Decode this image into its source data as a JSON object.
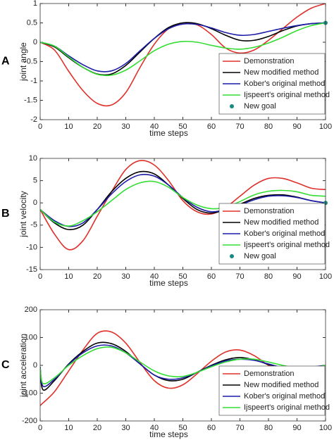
{
  "chart_data": [
    {
      "type": "line",
      "panel_label": "A",
      "xlabel": "time steps",
      "ylabel": "joint angle",
      "x": [
        0,
        5,
        10,
        15,
        20,
        25,
        30,
        35,
        40,
        45,
        50,
        55,
        60,
        65,
        70,
        75,
        80,
        85,
        90,
        95,
        100
      ],
      "xlim": [
        0,
        100
      ],
      "xticks": [
        0,
        10,
        20,
        30,
        40,
        50,
        60,
        70,
        80,
        90,
        100
      ],
      "ylim": [
        -2,
        1
      ],
      "yticks": [
        -2,
        -1.5,
        -1,
        -0.5,
        0,
        0.5,
        1
      ],
      "legend": "lower right",
      "series": [
        {
          "name": "Demonstration",
          "color": "#e0302a",
          "values": [
            0,
            -0.2,
            -0.75,
            -1.25,
            -1.58,
            -1.62,
            -1.3,
            -0.65,
            -0.05,
            0.35,
            0.5,
            0.45,
            0.2,
            -0.15,
            -0.28,
            -0.2,
            0.05,
            0.35,
            0.65,
            0.88,
            1.0
          ]
        },
        {
          "name": "New modified method",
          "color": "#000000",
          "values": [
            0,
            -0.12,
            -0.4,
            -0.65,
            -0.82,
            -0.82,
            -0.6,
            -0.25,
            0.1,
            0.38,
            0.5,
            0.48,
            0.35,
            0.18,
            0.05,
            0.05,
            0.15,
            0.3,
            0.42,
            0.48,
            0.5
          ]
        },
        {
          "name": "Kober's original method",
          "color": "#1c1ca8",
          "values": [
            0,
            -0.1,
            -0.35,
            -0.58,
            -0.74,
            -0.74,
            -0.55,
            -0.22,
            0.1,
            0.35,
            0.47,
            0.46,
            0.37,
            0.25,
            0.18,
            0.2,
            0.28,
            0.36,
            0.43,
            0.48,
            0.5
          ]
        },
        {
          "name": "Ijspeert's original method",
          "color": "#33dd33",
          "values": [
            0,
            -0.1,
            -0.38,
            -0.65,
            -0.83,
            -0.85,
            -0.72,
            -0.48,
            -0.22,
            -0.05,
            0.02,
            0,
            -0.08,
            -0.15,
            -0.18,
            -0.13,
            -0.02,
            0.13,
            0.3,
            0.43,
            0.5
          ]
        },
        {
          "name": "New goal",
          "color": "#1a8a80",
          "marker": true,
          "x": [
            100
          ],
          "values": [
            0.5
          ]
        }
      ]
    },
    {
      "type": "line",
      "panel_label": "B",
      "xlabel": "time steps",
      "ylabel": "joint velocity",
      "x": [
        0,
        5,
        10,
        15,
        20,
        25,
        30,
        35,
        40,
        45,
        50,
        55,
        60,
        65,
        70,
        75,
        80,
        85,
        90,
        95,
        100
      ],
      "xlim": [
        0,
        100
      ],
      "xticks": [
        0,
        10,
        20,
        30,
        40,
        50,
        60,
        70,
        80,
        90,
        100
      ],
      "ylim": [
        -15,
        10
      ],
      "yticks": [
        -15,
        -10,
        -5,
        0,
        5,
        10
      ],
      "legend": "lower right",
      "series": [
        {
          "name": "Demonstration",
          "color": "#e0302a",
          "values": [
            -1.5,
            -7,
            -10.5,
            -8.5,
            -3,
            2.5,
            7.5,
            9.5,
            8.5,
            5,
            0.5,
            -2,
            -2.5,
            -1,
            1.5,
            4,
            5.5,
            5.5,
            4.5,
            3.3,
            3
          ]
        },
        {
          "name": "New modified method",
          "color": "#000000",
          "values": [
            -1.5,
            -4.5,
            -6,
            -5,
            -1.5,
            2.5,
            5.5,
            7,
            6.5,
            4,
            1,
            -1.5,
            -2.3,
            -1.5,
            -0.3,
            1,
            1.7,
            1.8,
            1.3,
            0.5,
            0
          ]
        },
        {
          "name": "Kober's original method",
          "color": "#1c1ca8",
          "values": [
            -1.5,
            -4,
            -5.3,
            -4.5,
            -1.5,
            2,
            4.8,
            6.3,
            6,
            4,
            1.2,
            -1,
            -2,
            -1.5,
            -0.5,
            0.7,
            1.5,
            1.6,
            1.2,
            0.5,
            0
          ]
        },
        {
          "name": "Ijspeert's original method",
          "color": "#33dd33",
          "values": [
            -1.5,
            -4.3,
            -5.2,
            -4,
            -2,
            0.5,
            3,
            4.5,
            4.8,
            3.5,
            1.2,
            -0.5,
            -1.3,
            -1,
            0.3,
            1.8,
            2.6,
            2.8,
            2.5,
            1.7,
            1.5
          ]
        },
        {
          "name": "New goal",
          "color": "#1a8a80",
          "marker": true,
          "x": [
            100
          ],
          "values": [
            0
          ]
        }
      ]
    },
    {
      "type": "line",
      "panel_label": "C",
      "xlabel": "time steps",
      "ylabel": "joint acceleration",
      "x": [
        0,
        1,
        5,
        10,
        15,
        20,
        25,
        30,
        35,
        40,
        45,
        50,
        55,
        60,
        65,
        70,
        75,
        80,
        85,
        90,
        95,
        100
      ],
      "xlim": [
        0,
        100
      ],
      "xticks": [
        0,
        10,
        20,
        30,
        40,
        50,
        60,
        70,
        80,
        90,
        100
      ],
      "ylim": [
        -200,
        200
      ],
      "yticks": [
        -200,
        -100,
        0,
        100,
        200
      ],
      "legend": "lower right",
      "series": [
        {
          "name": "Demonstration",
          "color": "#e0302a",
          "values": [
            -145,
            -135,
            -95,
            -20,
            55,
            115,
            120,
            80,
            10,
            -55,
            -82,
            -70,
            -30,
            15,
            48,
            55,
            35,
            0,
            -25,
            -30,
            -15,
            0
          ]
        },
        {
          "name": "New modified method",
          "color": "#000000",
          "values": [
            -10,
            -88,
            -55,
            5,
            50,
            80,
            78,
            50,
            5,
            -35,
            -55,
            -50,
            -25,
            0,
            20,
            28,
            20,
            3,
            -10,
            -15,
            -8,
            0
          ]
        },
        {
          "name": "Kober's original method",
          "color": "#1c1ca8",
          "values": [
            -5,
            -75,
            -50,
            3,
            45,
            70,
            70,
            45,
            5,
            -35,
            -50,
            -45,
            -25,
            -2,
            16,
            22,
            18,
            5,
            -8,
            -12,
            -6,
            0
          ]
        },
        {
          "name": "Ijspeert's original method",
          "color": "#33dd33",
          "values": [
            -10,
            -65,
            -45,
            0,
            35,
            60,
            65,
            45,
            12,
            -20,
            -38,
            -40,
            -25,
            -5,
            12,
            22,
            22,
            12,
            0,
            -10,
            -10,
            0
          ]
        }
      ]
    }
  ]
}
